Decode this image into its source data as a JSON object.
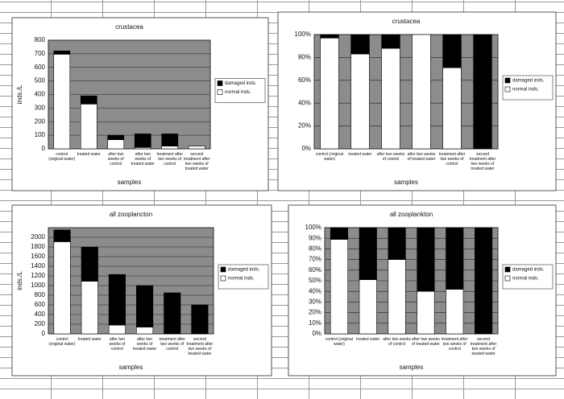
{
  "chart_data": [
    {
      "type": "bar",
      "stacked": true,
      "title": "crustacea",
      "x_label": "samples",
      "y_label": "inds./L",
      "categories": [
        "control (original water)",
        "treated water",
        "after two weeks of control",
        "after two weeks of treated water",
        "treatment after two weeks of control",
        "second treatment after two weeks of treated water"
      ],
      "series": [
        {
          "name": "damaged inds.",
          "color": "#000000",
          "values": [
            24,
            60,
            33,
            100,
            90,
            0
          ]
        },
        {
          "name": "normal inds.",
          "color": "#ffffff",
          "values": [
            697,
            330,
            67,
            10,
            20,
            20
          ]
        }
      ],
      "ylim": [
        0,
        800
      ],
      "yticks": [
        0,
        100,
        200,
        300,
        400,
        500,
        600,
        700,
        800
      ],
      "grid": true,
      "legend": "right"
    },
    {
      "type": "bar",
      "stacked": true,
      "title": "crustacea",
      "x_label": "samples",
      "categories": [
        "control (original water)",
        "treated water",
        "after two weeks of control",
        "after two weeks of treated water",
        "treatment after two weeks of control",
        "second treatment after two weeks of treated water"
      ],
      "series": [
        {
          "name": "damaged inds.",
          "color": "#000000",
          "values": [
            3,
            17,
            12,
            0,
            29,
            100
          ]
        },
        {
          "name": "normal inds.",
          "color": "#ffffff",
          "values": [
            97,
            83,
            88,
            100,
            71,
            0
          ]
        }
      ],
      "ylim": [
        0,
        100
      ],
      "yticks": [
        {
          "value": 0,
          "label": "0%"
        },
        {
          "value": 20,
          "label": "20%"
        },
        {
          "value": 40,
          "label": "40%"
        },
        {
          "value": 60,
          "label": "60%"
        },
        {
          "value": 80,
          "label": "80%"
        },
        {
          "value": 100,
          "label": "100%"
        }
      ],
      "grid": true,
      "legend": "right"
    },
    {
      "type": "bar",
      "stacked": true,
      "title": "all zooplancton",
      "x_label": "samples",
      "y_label": "inds./L",
      "categories": [
        "control (original water)",
        "treated water",
        "after two weeks of control",
        "after two weeks of treated water",
        "treatment after two weeks of control",
        "second treatment after two weeks of treated water"
      ],
      "series": [
        {
          "name": "damaged inds.",
          "color": "#000000",
          "values": [
            244,
            707,
            1050,
            860,
            850,
            600
          ]
        },
        {
          "name": "normal inds.",
          "color": "#ffffff",
          "values": [
            1909,
            1090,
            180,
            140,
            0,
            0
          ]
        }
      ],
      "ylim": [
        0,
        2200
      ],
      "yticks": [
        0,
        200,
        400,
        600,
        800,
        1000,
        1200,
        1400,
        1600,
        1800,
        2000
      ],
      "grid": true,
      "legend": "right"
    },
    {
      "type": "bar",
      "stacked": true,
      "title": "all zooplankton",
      "x_label": "samples",
      "categories": [
        "control (original water)",
        "treated water",
        "after two weeks of control",
        "after two weeks of treated water",
        "treatment after two weeks of control",
        "second treatment after two weeks of treated water"
      ],
      "series": [
        {
          "name": "damaged inds.",
          "color": "#000000",
          "values": [
            11,
            49,
            30,
            60,
            58,
            100
          ]
        },
        {
          "name": "normal inds.",
          "color": "#ffffff",
          "values": [
            89,
            51,
            70,
            40,
            42,
            0
          ]
        }
      ],
      "ylim": [
        0,
        100
      ],
      "yticks": [
        {
          "value": 0,
          "label": "0%"
        },
        {
          "value": 10,
          "label": "10%"
        },
        {
          "value": 20,
          "label": "20%"
        },
        {
          "value": 30,
          "label": "30%"
        },
        {
          "value": 40,
          "label": "40%"
        },
        {
          "value": 50,
          "label": "50%"
        },
        {
          "value": 60,
          "label": "60%"
        },
        {
          "value": 70,
          "label": "70%"
        },
        {
          "value": 80,
          "label": "80%"
        },
        {
          "value": 90,
          "label": "90%"
        },
        {
          "value": 100,
          "label": "100%"
        }
      ],
      "grid": true,
      "legend": "right"
    }
  ]
}
